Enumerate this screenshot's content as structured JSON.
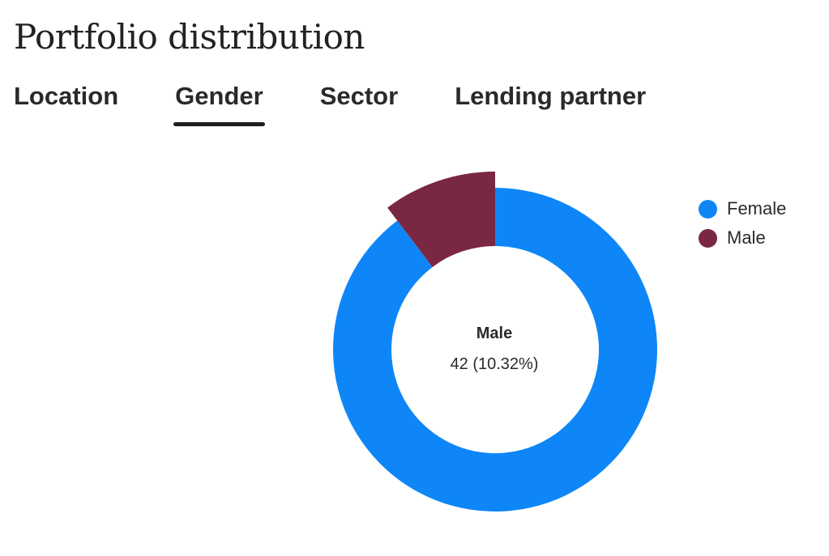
{
  "header": {
    "title": "Portfolio distribution"
  },
  "tabs": [
    {
      "label": "Location",
      "active": false
    },
    {
      "label": "Gender",
      "active": true
    },
    {
      "label": "Sector",
      "active": false
    },
    {
      "label": "Lending partner",
      "active": false
    }
  ],
  "chart_data": {
    "type": "pie",
    "variant": "donut",
    "categories": [
      "Female",
      "Male"
    ],
    "values": [
      365,
      42
    ],
    "colors": [
      "#0e86f7",
      "#7a2744"
    ],
    "highlighted": "Male",
    "legend_position": "top-right",
    "center_label": {
      "name": "Male",
      "value": "42 (10.32%)"
    }
  },
  "legend": {
    "items": [
      {
        "label": "Female",
        "color": "#0e86f7"
      },
      {
        "label": "Male",
        "color": "#7a2744"
      }
    ]
  },
  "colors": {
    "accent": "#1f1f1f",
    "female": "#0e86f7",
    "male": "#7a2744"
  }
}
